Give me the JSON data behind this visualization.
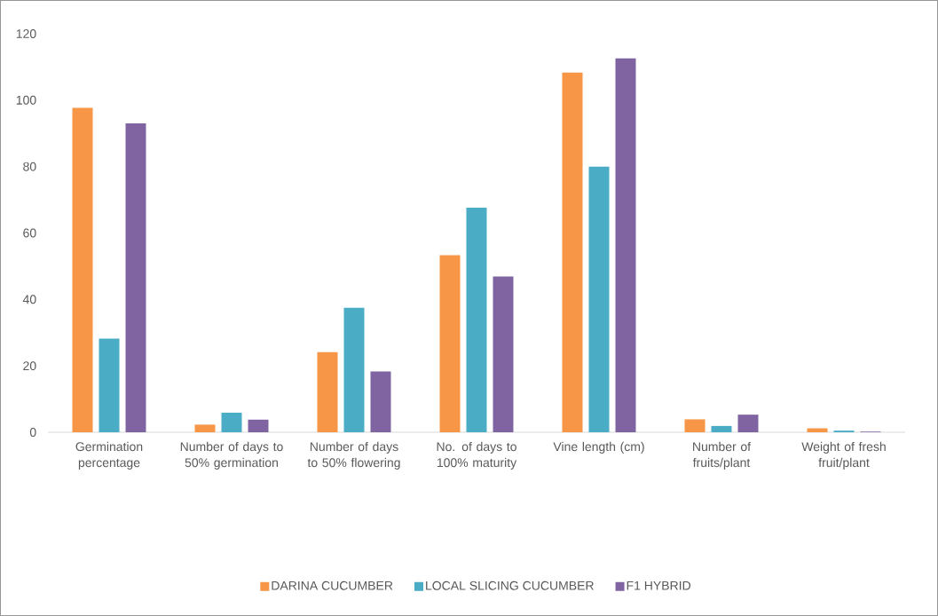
{
  "chart_data": {
    "type": "bar",
    "categories": [
      "Germination percentage",
      "Number of days to 50% germination",
      "Number of days to 50% flowering",
      "No. of days to 100% maturity",
      "Vine length (cm)",
      "Number of fruits/plant",
      "Weight of fresh fruit/plant"
    ],
    "series": [
      {
        "name": "DARINA CUCUMBER",
        "color": "#f79646",
        "values": [
          97.7,
          2.3,
          24.1,
          53.3,
          108.3,
          3.9,
          1.2
        ]
      },
      {
        "name": "LOCAL SLICING CUCUMBER",
        "color": "#4bacc6",
        "values": [
          28.2,
          5.9,
          37.5,
          67.6,
          80,
          1.9,
          0.5
        ]
      },
      {
        "name": "F1  HYBRID",
        "color": "#8064a2",
        "values": [
          93,
          3.8,
          18.3,
          46.9,
          112.6,
          5.3,
          0.2
        ]
      }
    ],
    "ylim": [
      0,
      120
    ],
    "yticks": [
      0,
      20,
      40,
      60,
      80,
      100,
      120
    ],
    "grid": false,
    "legend": "bottom"
  }
}
